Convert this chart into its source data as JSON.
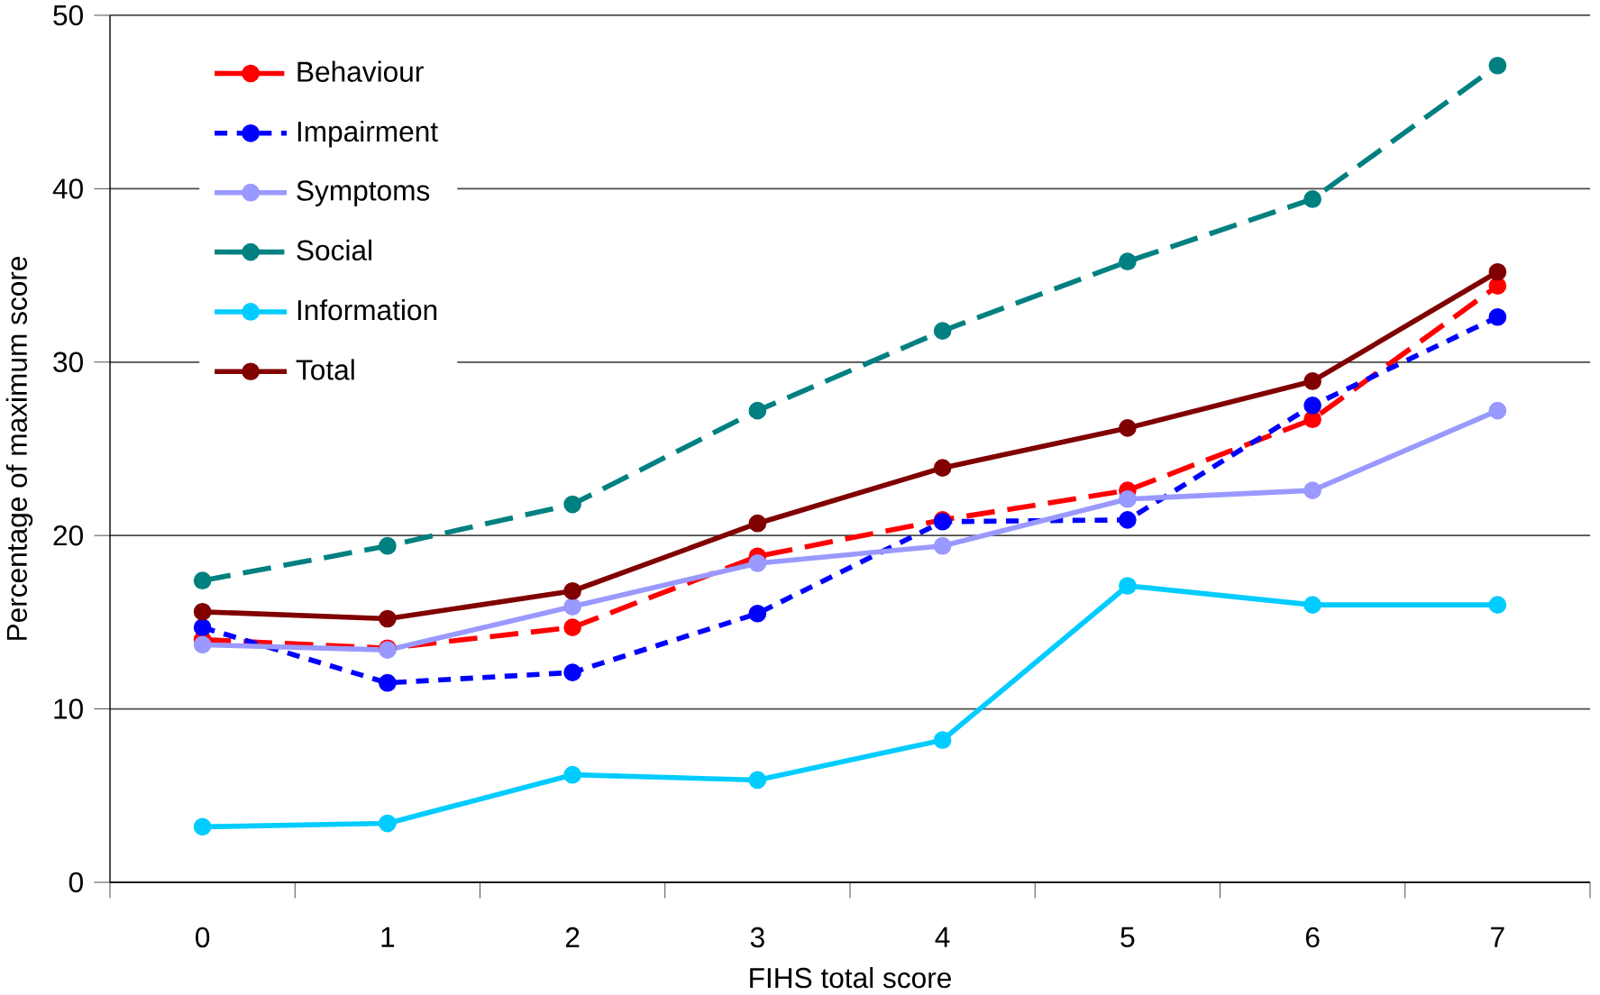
{
  "chart_data": {
    "type": "line",
    "xlabel": "FIHS total score",
    "ylabel": "Percentage of maximum score",
    "categories": [
      "0",
      "1",
      "2",
      "3",
      "4",
      "5",
      "6",
      "7"
    ],
    "series": [
      {
        "name": "Behaviour",
        "color": "#ff0000",
        "line_style": "dashed",
        "values": [
          14.0,
          13.5,
          14.7,
          18.8,
          20.9,
          22.6,
          26.7,
          34.4
        ]
      },
      {
        "name": "Impairment",
        "color": "#0000ff",
        "line_style": "dotted",
        "values": [
          14.7,
          11.5,
          12.1,
          15.5,
          20.8,
          20.9,
          27.5,
          32.6
        ]
      },
      {
        "name": "Symptoms",
        "color": "#9999ff",
        "line_style": "solid",
        "values": [
          13.7,
          13.4,
          15.9,
          18.4,
          19.4,
          22.1,
          22.6,
          27.2
        ]
      },
      {
        "name": "Social",
        "color": "#008080",
        "line_style": "dashed",
        "values": [
          17.4,
          19.4,
          21.8,
          27.2,
          31.8,
          35.8,
          39.4,
          47.1
        ]
      },
      {
        "name": "Information",
        "color": "#00ccff",
        "line_style": "solid",
        "values": [
          3.2,
          3.4,
          6.2,
          5.9,
          8.2,
          17.1,
          16.0,
          16.0
        ]
      },
      {
        "name": "Total",
        "color": "#800000",
        "line_style": "solid",
        "values": [
          15.6,
          15.2,
          16.8,
          20.7,
          23.9,
          26.2,
          28.9,
          35.2
        ]
      }
    ],
    "ylim": [
      0,
      50
    ],
    "yticks": [
      0,
      10,
      20,
      30,
      40,
      50
    ],
    "grid": "y",
    "legend": "top left",
    "marker": "circle"
  }
}
